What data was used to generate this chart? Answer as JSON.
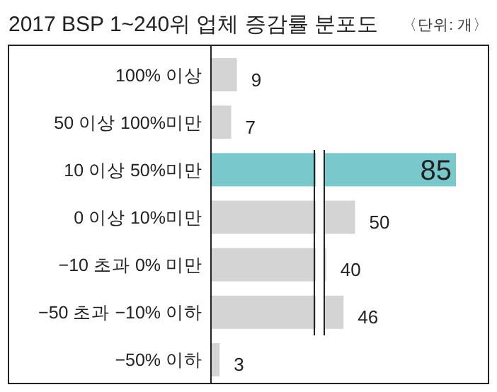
{
  "chart_data": {
    "type": "bar",
    "orientation": "horizontal",
    "title": "2017 BSP 1~240위 업체 증감률 분포도",
    "annotations": [
      "〈단위: 개〉"
    ],
    "categories": [
      "100% 이상",
      "50 이상 100%미만",
      "10 이상 50%미만",
      "0 이상 10%미만",
      "−10 초과 0% 미만",
      "−50 초과 −10% 이하",
      "−50% 이하"
    ],
    "values": [
      9,
      7,
      85,
      50,
      40,
      46,
      3
    ],
    "colors": [
      "#d4d4d4",
      "#d4d4d4",
      "#79c9cc",
      "#d4d4d4",
      "#d4d4d4",
      "#d4d4d4",
      "#d4d4d4"
    ],
    "data_labels": true
  }
}
